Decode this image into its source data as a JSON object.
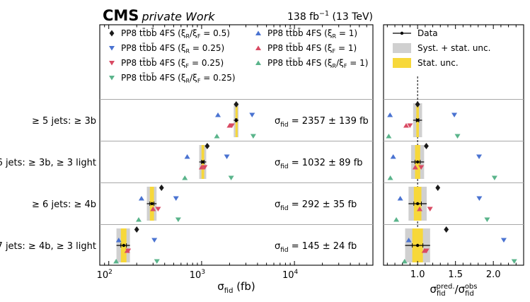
{
  "header": {
    "experiment": "CMS",
    "status": "private Work",
    "lumi_value": "138 fb",
    "lumi_exp": "−1",
    "lumi_energy": " (13 TeV)"
  },
  "chart_data": [
    {
      "type": "scatter",
      "panel": "cross-sections",
      "xscale": "log",
      "xlim": [
        80,
        70000
      ],
      "xticks": [
        {
          "v": 100,
          "b": "10",
          "e": "2"
        },
        {
          "v": 1000,
          "b": "10",
          "e": "3"
        },
        {
          "v": 10000,
          "b": "10",
          "e": "4"
        }
      ],
      "xlabel": {
        "main": "σ",
        "sub": "fid",
        "tail": " (fb)"
      },
      "categories": [
        "≥ 5 jets:  ≥ 3b",
        "≥ 6 jets:  ≥ 3b,  ≥ 3 light",
        "≥ 6 jets:  ≥ 4b",
        "≥ 7 jets:  ≥ 4b,  ≥ 3 light"
      ],
      "data": {
        "name": "Data",
        "values": [
          2357,
          1032,
          292,
          145
        ],
        "stat_unc": [
          40,
          35,
          15,
          10
        ],
        "total_unc": [
          139,
          89,
          35,
          24
        ],
        "labels": [
          {
            "pre": "σ",
            "sub": "fid",
            "post": " = 2357 ± 139 fb"
          },
          {
            "pre": "σ",
            "sub": "fid",
            "post": " = 1032 ± 89 fb"
          },
          {
            "pre": "σ",
            "sub": "fid",
            "post": " = 292 ± 35 fb"
          },
          {
            "pre": "σ",
            "sub": "fid",
            "post": " = 145 ± 24 fb"
          }
        ]
      },
      "series": [
        {
          "name": "PP8 tt̄bb̄ 4FS (ξR/ξF = 0.5)",
          "marker": "diamond",
          "color": "#1a1a1a",
          "offset": -3,
          "values": [
            2360,
            1150,
            370,
            200
          ]
        },
        {
          "name": "PP8 tt̄bb̄ 4FS (ξR = 0.25)",
          "marker": "tri-down",
          "color": "#4a73d1",
          "offset": -1,
          "values": [
            3500,
            1870,
            530,
            310
          ]
        },
        {
          "name": "PP8 tt̄bb̄ 4FS (ξF = 0.25)",
          "marker": "tri-down",
          "color": "#d94a63",
          "offset": 1,
          "values": [
            2120,
            1080,
            340,
            162
          ]
        },
        {
          "name": "PP8 tt̄bb̄ 4FS (ξR/ξF = 0.25)",
          "marker": "tri-down",
          "color": "#5ab48b",
          "offset": 3,
          "values": [
            3600,
            2080,
            560,
            330
          ]
        },
        {
          "name": "PP8 tt̄bb̄ 4FS (ξR = 1)",
          "marker": "tri-up",
          "color": "#4a73d1",
          "offset": -1,
          "values": [
            1500,
            700,
            225,
            128
          ]
        },
        {
          "name": "PP8 tt̄bb̄ 4FS (ξF = 1)",
          "marker": "tri-up",
          "color": "#d94a63",
          "offset": 1,
          "values": [
            2000,
            1000,
            300,
            158
          ]
        },
        {
          "name": "PP8 tt̄bb̄ 4FS (ξR/ξF = 1)",
          "marker": "tri-up",
          "color": "#5ab48b",
          "offset": 3,
          "values": [
            1460,
            660,
            210,
            120
          ]
        }
      ],
      "legend": {
        "placement": "top",
        "entries": [
          {
            "marker": "diamond",
            "color": "#1a1a1a",
            "label": "PP8 tt̄bb̄ 4FS",
            "param": {
              "a": "ξ",
              "as": "R",
              "s": "/",
              "b": "ξ",
              "bs": "F",
              "v": " = 0.5"
            }
          },
          {
            "marker": "tri-down",
            "color": "#4a73d1",
            "label": "PP8 tt̄bb̄ 4FS",
            "param": {
              "a": "ξ",
              "as": "R",
              "v": " = 0.25"
            }
          },
          {
            "marker": "tri-down",
            "color": "#d94a63",
            "label": "PP8 tt̄bb̄ 4FS",
            "param": {
              "a": "ξ",
              "as": "F",
              "v": " = 0.25"
            }
          },
          {
            "marker": "tri-down",
            "color": "#5ab48b",
            "label": "PP8 tt̄bb̄ 4FS",
            "param": {
              "a": "ξ",
              "as": "R",
              "s": "/",
              "b": "ξ",
              "bs": "F",
              "v": " = 0.25"
            }
          },
          {
            "marker": "tri-up",
            "color": "#4a73d1",
            "label": "PP8 tt̄bb̄ 4FS",
            "param": {
              "a": "ξ",
              "as": "R",
              "v": " = 1"
            }
          },
          {
            "marker": "tri-up",
            "color": "#d94a63",
            "label": "PP8 tt̄bb̄ 4FS",
            "param": {
              "a": "ξ",
              "as": "F",
              "v": " = 1"
            }
          },
          {
            "marker": "tri-up",
            "color": "#5ab48b",
            "label": "PP8 tt̄bb̄ 4FS",
            "param": {
              "a": "ξ",
              "as": "R",
              "s": "/",
              "b": "ξ",
              "bs": "F",
              "v": " = 1"
            }
          }
        ]
      },
      "colors": {
        "syst_band": "#d0d0d0",
        "stat_band": "#f7d83a"
      }
    },
    {
      "type": "scatter",
      "panel": "ratio",
      "xlim": [
        0.55,
        2.4
      ],
      "xticks": [
        1.0,
        1.5,
        2.0
      ],
      "xtick_labels": [
        "1.0",
        "1.5",
        "2.0"
      ],
      "xlabel": {
        "a": "σ",
        "as": "fid",
        "asup": "pred.",
        "s": "/",
        "b": "σ",
        "bs": "fid",
        "bsup": "obs"
      },
      "reference_line": 1.0,
      "data": {
        "name": "Data",
        "values": [
          1,
          1,
          1,
          1
        ],
        "stat_unc": [
          0.017,
          0.034,
          0.05,
          0.07
        ],
        "total_unc": [
          0.059,
          0.086,
          0.12,
          0.165
        ]
      },
      "series_values": [
        [
          1.0,
          1.115,
          1.267,
          1.379
        ],
        [
          1.485,
          1.812,
          1.815,
          2.138
        ],
        [
          0.899,
          1.047,
          1.164,
          1.117
        ],
        [
          1.527,
          2.016,
          1.918,
          2.276
        ],
        [
          0.636,
          0.678,
          0.771,
          0.883
        ],
        [
          0.849,
          0.969,
          1.027,
          1.09
        ],
        [
          0.619,
          0.64,
          0.719,
          0.828
        ]
      ],
      "legend": {
        "placement": "top",
        "entries": [
          {
            "kind": "data",
            "label": "Data"
          },
          {
            "kind": "syst",
            "label": "Syst. + stat. unc."
          },
          {
            "kind": "stat",
            "label": "Stat. unc."
          }
        ]
      }
    }
  ]
}
